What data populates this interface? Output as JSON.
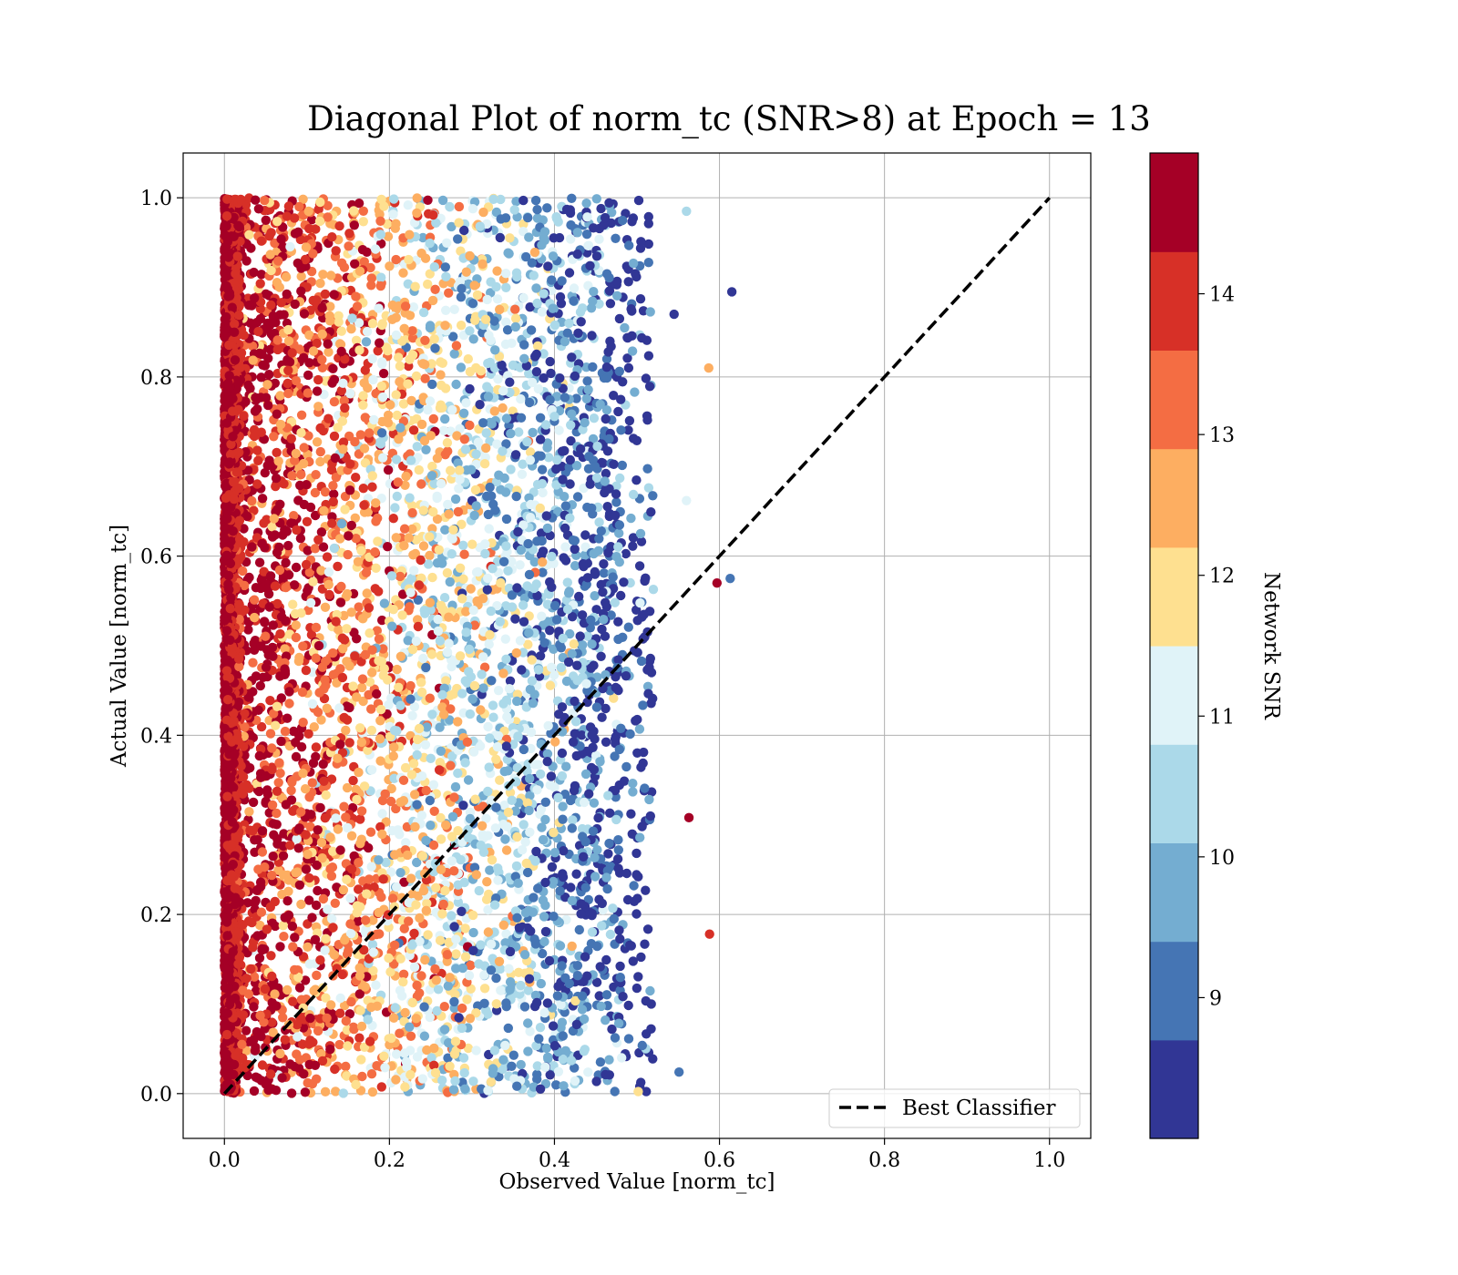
{
  "chart_data": {
    "type": "scatter",
    "title": "Diagonal Plot of norm_tc (SNR>8) at Epoch = 13",
    "xlabel": "Observed Value [norm_tc]",
    "ylabel": "Actual Value [norm_tc]",
    "xlim": [
      -0.05,
      1.05
    ],
    "ylim": [
      -0.05,
      1.05
    ],
    "xticks": [
      "0.0",
      "0.2",
      "0.4",
      "0.6",
      "0.8",
      "1.0"
    ],
    "yticks": [
      "0.0",
      "0.2",
      "0.4",
      "0.6",
      "0.8",
      "1.0"
    ],
    "grid": true,
    "reference_line": {
      "label": "Best Classifier",
      "x": [
        0.0,
        1.0
      ],
      "y": [
        0.0,
        1.0
      ],
      "style": "dashed",
      "color": "#000000"
    },
    "legend_position": "lower right",
    "colorbar": {
      "label": "Network SNR",
      "range": [
        8,
        15
      ],
      "ticks": [
        "9",
        "10",
        "11",
        "12",
        "13",
        "14"
      ],
      "tick_values": [
        9,
        10,
        11,
        12,
        13,
        14
      ],
      "colors": [
        "#313695",
        "#4575b4",
        "#74add1",
        "#abd9e9",
        "#e0f3f8",
        "#fee090",
        "#fdae61",
        "#f46d43",
        "#d73027",
        "#a50026"
      ]
    },
    "point_distribution": {
      "x_range": [
        0.0,
        0.5
      ],
      "y_range": [
        0.0,
        1.0
      ],
      "note_high_snr_near_x0": true
    },
    "outliers": [
      {
        "x": 0.615,
        "y": 0.895,
        "snr": 8.3
      },
      {
        "x": 0.613,
        "y": 0.575,
        "snr": 9.2
      },
      {
        "x": 0.597,
        "y": 0.57,
        "snr": 14.8
      },
      {
        "x": 0.587,
        "y": 0.81,
        "snr": 12.5
      },
      {
        "x": 0.563,
        "y": 0.308,
        "snr": 14.8
      },
      {
        "x": 0.588,
        "y": 0.178,
        "snr": 14.2
      },
      {
        "x": 0.56,
        "y": 0.985,
        "snr": 10.6
      },
      {
        "x": 0.551,
        "y": 0.024,
        "snr": 9.2
      },
      {
        "x": 0.56,
        "y": 0.662,
        "snr": 11.4
      },
      {
        "x": 0.545,
        "y": 0.87,
        "snr": 8.5
      }
    ]
  }
}
